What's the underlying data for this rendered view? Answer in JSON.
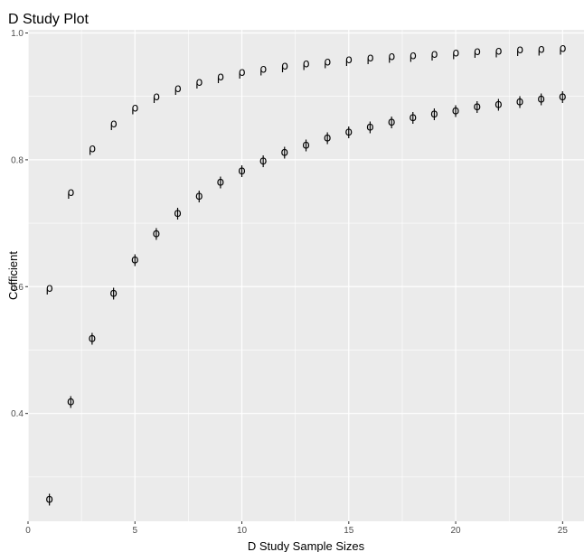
{
  "chart_data": {
    "type": "scatter",
    "title": "D Study Plot",
    "xlabel": "D Study Sample Sizes",
    "ylabel": "Cofficient",
    "xlim": [
      0,
      26
    ],
    "ylim": [
      0.23,
      1.005
    ],
    "x_ticks": [
      0,
      5,
      10,
      15,
      20,
      25
    ],
    "y_ticks": [
      0.4,
      0.6,
      0.8,
      1.0
    ],
    "y_tick_labels": [
      "0.4",
      "0.6",
      "0.8",
      "1.0"
    ],
    "grid": true,
    "panel_background": "#ebebeb",
    "grid_color": "#ffffff",
    "x": [
      1,
      2,
      3,
      4,
      5,
      6,
      7,
      8,
      9,
      10,
      11,
      12,
      13,
      14,
      15,
      16,
      17,
      18,
      19,
      20,
      21,
      22,
      23,
      24,
      25
    ],
    "series": [
      {
        "marker": "ρ",
        "values": [
          0.597,
          0.748,
          0.817,
          0.856,
          0.881,
          0.899,
          0.912,
          0.922,
          0.93,
          0.937,
          0.942,
          0.947,
          0.951,
          0.954,
          0.957,
          0.96,
          0.962,
          0.964,
          0.966,
          0.968,
          0.97,
          0.971,
          0.973,
          0.974,
          0.975
        ]
      },
      {
        "marker": "ϕ",
        "values": [
          0.264,
          0.418,
          0.518,
          0.589,
          0.642,
          0.683,
          0.715,
          0.742,
          0.764,
          0.782,
          0.798,
          0.811,
          0.823,
          0.834,
          0.843,
          0.851,
          0.859,
          0.866,
          0.872,
          0.877,
          0.883,
          0.887,
          0.891,
          0.895,
          0.899
        ]
      }
    ]
  }
}
